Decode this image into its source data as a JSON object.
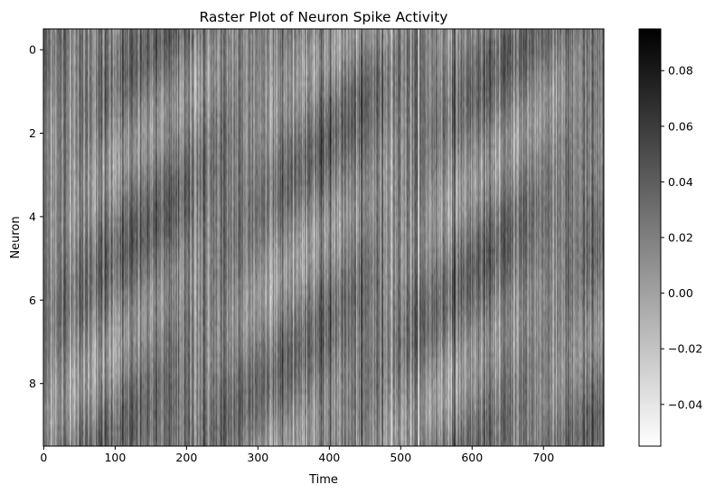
{
  "chart_data": {
    "type": "heatmap",
    "title": "Raster Plot of Neuron Spike Activity",
    "xlabel": "Time",
    "ylabel": "Neuron",
    "colormap": "gray_r",
    "colormap_colors": [
      "#ffffff",
      "#000000"
    ],
    "n_rows": 10,
    "n_cols": 785,
    "xlim": [
      -0.5,
      784.5
    ],
    "ylim": [
      9.5,
      -0.5
    ],
    "xticks": [
      0,
      100,
      200,
      300,
      400,
      500,
      600,
      700
    ],
    "yticks": [
      0,
      2,
      4,
      6,
      8
    ],
    "colorbar": {
      "vmin": -0.055,
      "vmax": 0.095,
      "ticks": [
        -0.04,
        -0.02,
        0.0,
        0.02,
        0.04,
        0.06,
        0.08
      ],
      "tick_labels": [
        "−0.04",
        "−0.02",
        "0.00",
        "0.02",
        "0.04",
        "0.06",
        "0.08"
      ]
    },
    "grid": false
  }
}
